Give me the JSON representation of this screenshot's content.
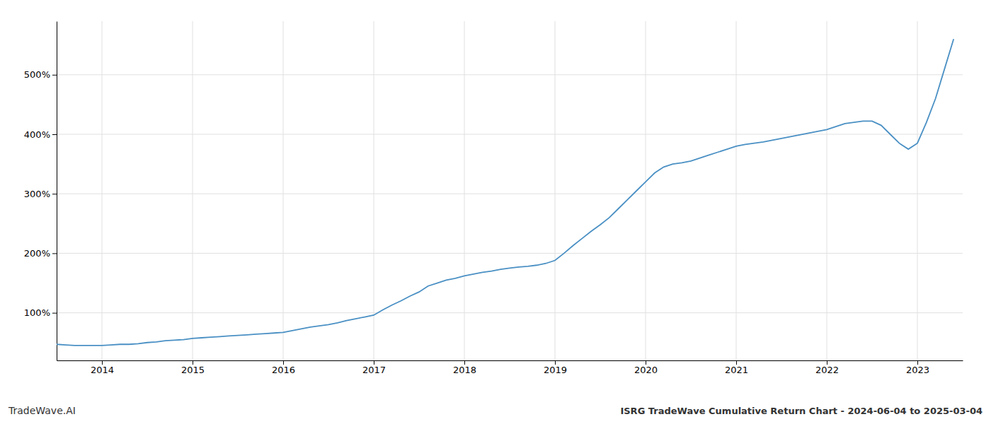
{
  "chart_data": {
    "type": "line",
    "title": "ISRG TradeWave Cumulative Return Chart - 2024-06-04 to 2025-03-04",
    "annotations": [
      "TradeWave.AI"
    ],
    "color": "#4a90c4",
    "grid": true,
    "xlim": [
      2013.5,
      2023.5
    ],
    "xticks": [
      2014,
      2015,
      2016,
      2017,
      2018,
      2019,
      2020,
      2021,
      2022,
      2023
    ],
    "ylim": [
      20,
      590
    ],
    "yticks": [
      {
        "value": 100,
        "label": "100%"
      },
      {
        "value": 200,
        "label": "200%"
      },
      {
        "value": 300,
        "label": "300%"
      },
      {
        "value": 400,
        "label": "400%"
      },
      {
        "value": 500,
        "label": "500%"
      }
    ],
    "x": [
      2013.5,
      2013.6,
      2013.7,
      2013.8,
      2013.9,
      2014.0,
      2014.1,
      2014.2,
      2014.3,
      2014.4,
      2014.5,
      2014.6,
      2014.7,
      2014.8,
      2014.9,
      2015.0,
      2015.1,
      2015.2,
      2015.3,
      2015.4,
      2015.5,
      2015.6,
      2015.7,
      2015.8,
      2015.9,
      2016.0,
      2016.1,
      2016.2,
      2016.3,
      2016.4,
      2016.5,
      2016.6,
      2016.7,
      2016.8,
      2016.9,
      2017.0,
      2017.1,
      2017.2,
      2017.3,
      2017.4,
      2017.5,
      2017.6,
      2017.7,
      2017.8,
      2017.9,
      2018.0,
      2018.1,
      2018.2,
      2018.3,
      2018.4,
      2018.5,
      2018.6,
      2018.7,
      2018.8,
      2018.9,
      2019.0,
      2019.1,
      2019.2,
      2019.3,
      2019.4,
      2019.5,
      2019.6,
      2019.7,
      2019.8,
      2019.9,
      2020.0,
      2020.1,
      2020.2,
      2020.3,
      2020.4,
      2020.5,
      2020.6,
      2020.7,
      2020.8,
      2020.9,
      2021.0,
      2021.1,
      2021.2,
      2021.3,
      2021.4,
      2021.5,
      2021.6,
      2021.7,
      2021.8,
      2021.9,
      2022.0,
      2022.1,
      2022.2,
      2022.3,
      2022.4,
      2022.5,
      2022.6,
      2022.7,
      2022.8,
      2022.9,
      2023.0,
      2023.1,
      2023.2,
      2023.3,
      2023.4
    ],
    "values": [
      47,
      46,
      45,
      45,
      45,
      45,
      46,
      47,
      47,
      48,
      50,
      51,
      53,
      54,
      55,
      57,
      58,
      59,
      60,
      61,
      62,
      63,
      64,
      65,
      66,
      67,
      70,
      73,
      76,
      78,
      80,
      83,
      87,
      90,
      93,
      96,
      105,
      113,
      120,
      128,
      135,
      145,
      150,
      155,
      158,
      162,
      165,
      168,
      170,
      173,
      175,
      177,
      178,
      180,
      183,
      188,
      200,
      213,
      225,
      237,
      248,
      260,
      275,
      290,
      305,
      320,
      335,
      345,
      350,
      352,
      355,
      360,
      365,
      370,
      375,
      380,
      383,
      385,
      387,
      390,
      393,
      396,
      399,
      402,
      405,
      408,
      413,
      418,
      420,
      422,
      422,
      415,
      400,
      385,
      375,
      385,
      420,
      460,
      510,
      560
    ]
  }
}
